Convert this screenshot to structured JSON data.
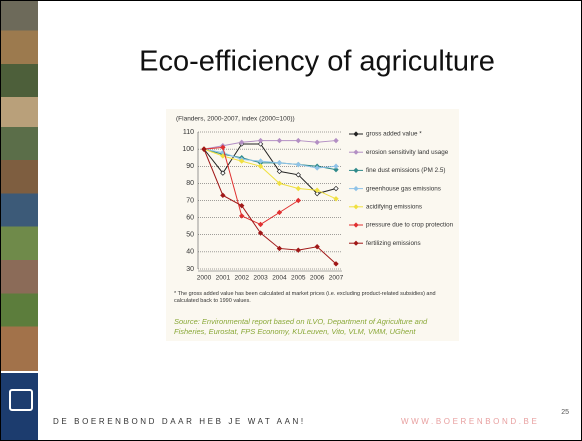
{
  "slide": {
    "title": "Eco-efficiency of agriculture",
    "footer": "DE BOERENBOND DAAR HEB JE WAT AAN!",
    "website": "WWW.BOERENBOND.BE",
    "page_number": "25"
  },
  "chart_data": {
    "type": "line",
    "subtitle": "(Flanders, 2000-2007, index (2000=100))",
    "categories": [
      "2000",
      "2001",
      "2002",
      "2003",
      "2004",
      "2005",
      "2006",
      "2007"
    ],
    "ylim": [
      30,
      110
    ],
    "yticks": [
      30,
      40,
      50,
      60,
      70,
      80,
      90,
      100,
      110
    ],
    "grid": true,
    "legend": "right",
    "series": [
      {
        "name": "gross added value *",
        "color": "#222222",
        "values": [
          100,
          86,
          103,
          103,
          87,
          85,
          74,
          77
        ]
      },
      {
        "name": "erosion sensitivity land usage",
        "color": "#b38fc4",
        "values": [
          100,
          102,
          104,
          105,
          105,
          105,
          104,
          105
        ]
      },
      {
        "name": "fine dust emissions (PM 2.5)",
        "color": "#2f8a8a",
        "values": [
          100,
          97,
          95,
          92,
          92,
          91,
          90,
          88
        ]
      },
      {
        "name": "greenhouse gas emissions",
        "color": "#8fc3e8",
        "values": [
          100,
          98,
          94,
          93,
          92,
          91,
          89,
          90
        ]
      },
      {
        "name": "acidifying emissions",
        "color": "#f0e040",
        "values": [
          100,
          96,
          93,
          90,
          80,
          77,
          76,
          71
        ]
      },
      {
        "name": "pressure due to crop protection",
        "color": "#e03030",
        "values": [
          100,
          101,
          61,
          56,
          63,
          70,
          null,
          null
        ]
      },
      {
        "name": "fertilizing emissions",
        "color": "#a01818",
        "values": [
          100,
          73,
          67,
          51,
          42,
          41,
          43,
          33
        ]
      }
    ],
    "footnote": "* The gross added value has been calculated at market prices (i.e. excluding product-related subsidies) and calculated back to 1990 values.",
    "source": "Source: Environmental report based on ILVO, Department of Agriculture and Fisheries, Eurostat, FPS Economy, KULeuven, Vito, VLM, VMM, UGhent"
  }
}
